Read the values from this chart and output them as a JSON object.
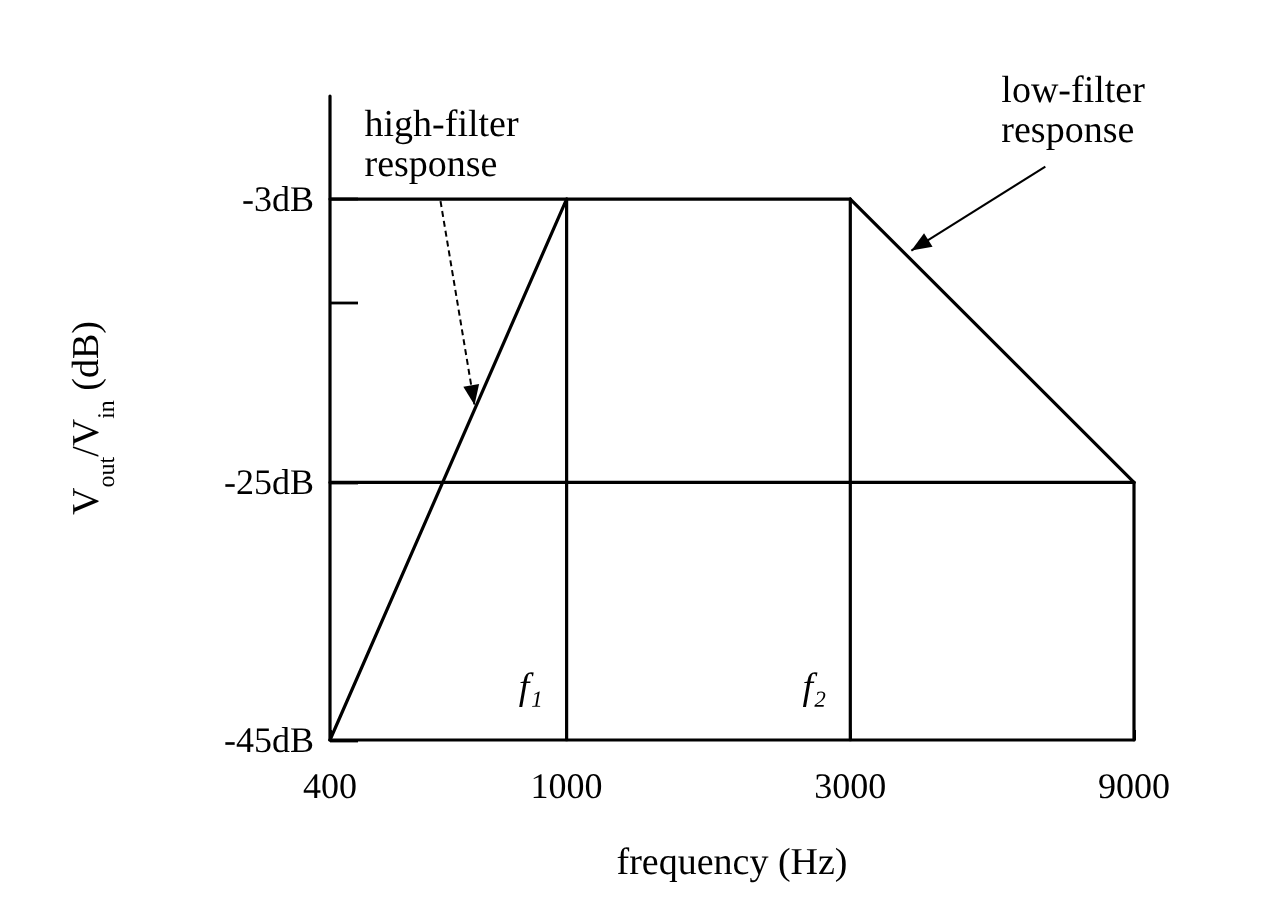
{
  "chart_data": {
    "type": "line",
    "xlabel": "frequency (Hz)",
    "ylabel": "V$_{out}$/V$_{in}$ (dB)",
    "log": "x",
    "xlim": [
      400,
      9000
    ],
    "xticks": [
      400,
      1000,
      3000,
      9000
    ],
    "ylim": [
      -45,
      5
    ],
    "yticks": [
      {
        "value": -3,
        "label": "-3dB"
      },
      {
        "value": -11,
        "label": null
      },
      {
        "value": -25,
        "label": "-25dB"
      },
      {
        "value": -45,
        "label": "-45dB"
      }
    ],
    "grid": false,
    "marker": "none",
    "line_style": "solid",
    "series": [
      {
        "color": "#000000",
        "x": [
          400,
          1000
        ],
        "values": [
          -45,
          -3
        ]
      },
      {
        "color": "#000000",
        "x": [
          3000,
          9000
        ],
        "values": [
          -3,
          -25
        ]
      },
      {
        "color": "#000000",
        "x": [
          400,
          3000
        ],
        "values": [
          -3,
          -3
        ]
      },
      {
        "color": "#000000",
        "x": [
          400,
          9000
        ],
        "values": [
          -25,
          -25
        ]
      },
      {
        "color": "#000000",
        "x": [
          1000,
          1000
        ],
        "values": [
          -3,
          -45
        ]
      },
      {
        "color": "#000000",
        "x": [
          3000,
          3000
        ],
        "values": [
          -3,
          -45
        ]
      },
      {
        "color": "#000000",
        "x": [
          9000,
          9000
        ],
        "values": [
          -25,
          -45
        ]
      }
    ],
    "annotations": [
      {
        "text": "high-filter\nresponse",
        "x": 700,
        "y": -19
      },
      {
        "text": "low-filter\nresponse",
        "x": 3800,
        "y": -7
      },
      {
        "text": "f₁",
        "x": 1000,
        "y": -41
      },
      {
        "text": "f₂",
        "x": 3000,
        "y": -41
      }
    ]
  }
}
